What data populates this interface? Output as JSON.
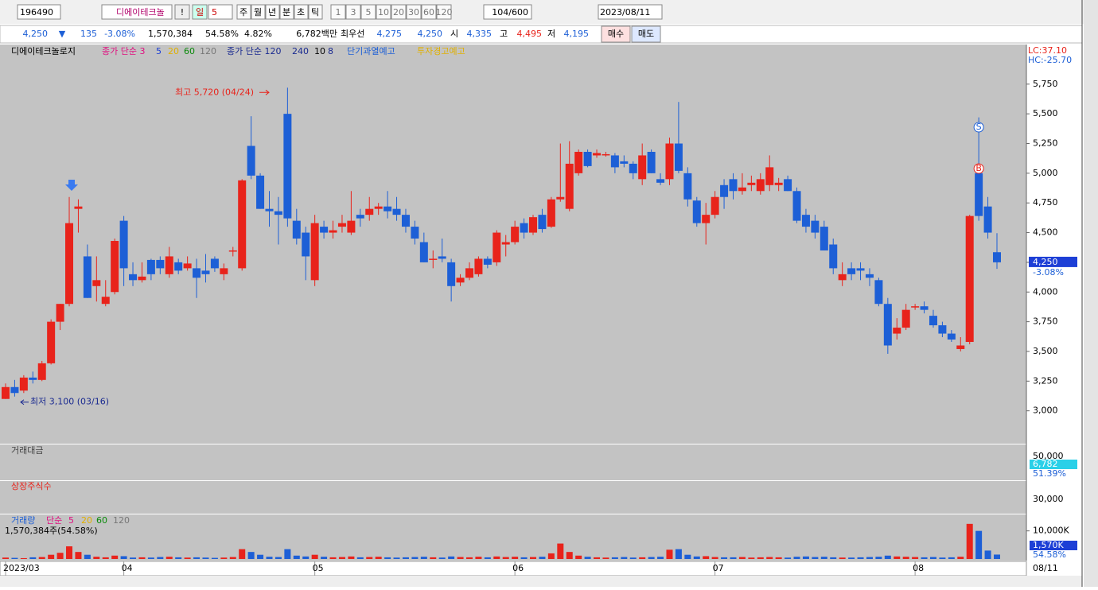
{
  "toolbar": {
    "code": "196490",
    "name": "디에이테크놀",
    "warn": "!",
    "period": "일",
    "period_n": "5",
    "units": [
      "주",
      "월",
      "년",
      "분",
      "초",
      "틱"
    ],
    "intervals": [
      "1",
      "3",
      "5",
      "10",
      "20",
      "30",
      "60",
      "120"
    ],
    "count": "104/600",
    "date": "2023/08/11"
  },
  "quote": {
    "price": "4,250",
    "arrow": "▼",
    "change": "135",
    "rate": "-3.08%",
    "volume": "1,570,384",
    "vol_rate": "54.58%",
    "turnover": "4.82%",
    "amount": "6,782백만",
    "best_label": "최우선",
    "ask": "4,275",
    "bid": "4,250",
    "open_label": "시",
    "open": "4,335",
    "high_label": "고",
    "high": "4,495",
    "low_label": "저",
    "low": "4,195",
    "buy": "매수",
    "sell": "매도"
  },
  "legend": {
    "name": "디에이테크놀로지",
    "ma1": "종가 단순 3",
    "ma1b": "5",
    "ma1c": "20",
    "ma1d": "60",
    "ma1e": "120",
    "ma2": "종가 단순 120",
    "ma2b": "240",
    "ma2c": "10",
    "ma2d": "8",
    "alert1": "단기과열예고",
    "alert2": "투자경고예고",
    "lc": "LC:37.10",
    "hc": "HC:-25.70"
  },
  "annotations": {
    "high": "최고 5,720 (04/24)",
    "low": "최저 3,100 (03/16)",
    "sell_mark": "S",
    "buy_mark": "B",
    "last_price": "4,250",
    "last_rate": "-3.08%",
    "end_date": "08/11"
  },
  "chart_data": {
    "type": "candlestick",
    "up_color": "#e8231b",
    "down_color": "#1d5fd6",
    "categories": [
      "2023/03",
      null,
      null,
      null,
      null,
      null,
      null,
      null,
      null,
      null,
      null,
      null,
      null,
      "04",
      null,
      null,
      null,
      null,
      null,
      null,
      null,
      null,
      null,
      null,
      null,
      null,
      null,
      null,
      null,
      null,
      null,
      null,
      null,
      null,
      "05",
      null,
      null,
      null,
      null,
      null,
      null,
      null,
      null,
      null,
      null,
      null,
      null,
      null,
      null,
      null,
      null,
      null,
      null,
      null,
      null,
      null,
      "06",
      null,
      null,
      null,
      null,
      null,
      null,
      null,
      null,
      null,
      null,
      null,
      null,
      null,
      null,
      null,
      null,
      null,
      null,
      null,
      null,
      null,
      "07",
      null,
      null,
      null,
      null,
      null,
      null,
      null,
      null,
      null,
      null,
      null,
      null,
      null,
      null,
      null,
      null,
      null,
      null,
      null,
      null,
      null,
      "08",
      null,
      null,
      null,
      null,
      null,
      null,
      null,
      null,
      null
    ],
    "ohlc": [
      [
        3100,
        3230,
        3100,
        3200
      ],
      [
        3200,
        3260,
        3120,
        3150
      ],
      [
        3170,
        3300,
        3150,
        3280
      ],
      [
        3280,
        3330,
        3230,
        3260
      ],
      [
        3260,
        3420,
        3250,
        3400
      ],
      [
        3400,
        3770,
        3390,
        3750
      ],
      [
        3750,
        3900,
        3680,
        3900
      ],
      [
        3900,
        4800,
        3880,
        4580
      ],
      [
        4700,
        4780,
        4500,
        4720
      ],
      [
        4300,
        4400,
        3950,
        3950
      ],
      [
        4050,
        4300,
        3920,
        4100
      ],
      [
        3900,
        4100,
        3880,
        3960
      ],
      [
        4000,
        4450,
        3980,
        4430
      ],
      [
        4600,
        4640,
        4050,
        4200
      ],
      [
        4150,
        4250,
        4050,
        4100
      ],
      [
        4100,
        4250,
        4080,
        4130
      ],
      [
        4270,
        4280,
        4100,
        4150
      ],
      [
        4270,
        4300,
        4150,
        4200
      ],
      [
        4150,
        4380,
        4120,
        4300
      ],
      [
        4250,
        4280,
        4150,
        4180
      ],
      [
        4200,
        4300,
        4180,
        4240
      ],
      [
        4200,
        4280,
        3950,
        4120
      ],
      [
        4180,
        4320,
        4080,
        4150
      ],
      [
        4280,
        4300,
        4170,
        4200
      ],
      [
        4150,
        4240,
        4100,
        4200
      ],
      [
        4350,
        4380,
        4300,
        4350
      ],
      [
        4200,
        4950,
        4180,
        4940
      ],
      [
        5230,
        5480,
        4950,
        4980
      ],
      [
        4980,
        5000,
        4700,
        4700
      ],
      [
        4700,
        4850,
        4550,
        4680
      ],
      [
        4680,
        4800,
        4400,
        4650
      ],
      [
        5500,
        5720,
        4550,
        4620
      ],
      [
        4600,
        4700,
        4400,
        4450
      ],
      [
        4500,
        4550,
        4100,
        4300
      ],
      [
        4100,
        4650,
        4050,
        4580
      ],
      [
        4550,
        4600,
        4450,
        4500
      ],
      [
        4500,
        4600,
        4450,
        4520
      ],
      [
        4550,
        4650,
        4500,
        4580
      ],
      [
        4500,
        4850,
        4480,
        4600
      ],
      [
        4650,
        4700,
        4550,
        4620
      ],
      [
        4650,
        4800,
        4600,
        4700
      ],
      [
        4700,
        4750,
        4650,
        4720
      ],
      [
        4720,
        4850,
        4620,
        4680
      ],
      [
        4700,
        4800,
        4600,
        4650
      ],
      [
        4650,
        4700,
        4500,
        4550
      ],
      [
        4550,
        4600,
        4400,
        4450
      ],
      [
        4420,
        4500,
        4250,
        4250
      ],
      [
        4280,
        4350,
        4200,
        4280
      ],
      [
        4300,
        4450,
        4250,
        4280
      ],
      [
        4250,
        4280,
        3920,
        4050
      ],
      [
        4080,
        4150,
        4050,
        4120
      ],
      [
        4120,
        4250,
        4100,
        4200
      ],
      [
        4150,
        4300,
        4130,
        4280
      ],
      [
        4280,
        4300,
        4200,
        4230
      ],
      [
        4250,
        4520,
        4220,
        4500
      ],
      [
        4400,
        4480,
        4300,
        4420
      ],
      [
        4420,
        4600,
        4400,
        4550
      ],
      [
        4580,
        4620,
        4450,
        4500
      ],
      [
        4500,
        4650,
        4480,
        4630
      ],
      [
        4650,
        4700,
        4500,
        4530
      ],
      [
        4550,
        4800,
        4540,
        4780
      ],
      [
        4780,
        5250,
        4760,
        4800
      ],
      [
        4700,
        5270,
        4680,
        5080
      ],
      [
        5000,
        5200,
        4980,
        5180
      ],
      [
        5180,
        5200,
        5050,
        5060
      ],
      [
        5150,
        5200,
        5130,
        5170
      ],
      [
        5150,
        5180,
        5140,
        5160
      ],
      [
        5150,
        5170,
        5000,
        5050
      ],
      [
        5100,
        5150,
        5050,
        5080
      ],
      [
        5080,
        5100,
        4950,
        5000
      ],
      [
        4950,
        5250,
        4900,
        5150
      ],
      [
        5180,
        5200,
        5000,
        5000
      ],
      [
        4950,
        5000,
        4900,
        4920
      ],
      [
        4950,
        5300,
        4900,
        5250
      ],
      [
        5250,
        5600,
        5000,
        5020
      ],
      [
        5000,
        5050,
        4720,
        4780
      ],
      [
        4770,
        4800,
        4550,
        4580
      ],
      [
        4580,
        4750,
        4400,
        4650
      ],
      [
        4650,
        4850,
        4620,
        4800
      ],
      [
        4900,
        4950,
        4700,
        4800
      ],
      [
        4950,
        5000,
        4780,
        4850
      ],
      [
        4850,
        5000,
        4820,
        4880
      ],
      [
        4900,
        4980,
        4850,
        4920
      ],
      [
        4850,
        5000,
        4820,
        4950
      ],
      [
        4900,
        5150,
        4850,
        5050
      ],
      [
        4900,
        4960,
        4850,
        4920
      ],
      [
        4950,
        4980,
        4850,
        4850
      ],
      [
        4850,
        4880,
        4580,
        4600
      ],
      [
        4650,
        4700,
        4500,
        4550
      ],
      [
        4600,
        4650,
        4450,
        4500
      ],
      [
        4550,
        4600,
        4350,
        4350
      ],
      [
        4400,
        4450,
        4150,
        4200
      ],
      [
        4100,
        4250,
        4050,
        4150
      ],
      [
        4200,
        4250,
        4100,
        4150
      ],
      [
        4200,
        4250,
        4100,
        4180
      ],
      [
        4150,
        4200,
        4050,
        4120
      ],
      [
        4100,
        4120,
        3880,
        3900
      ],
      [
        3900,
        3950,
        3480,
        3550
      ],
      [
        3650,
        3780,
        3600,
        3700
      ],
      [
        3700,
        3900,
        3680,
        3850
      ],
      [
        3870,
        3900,
        3850,
        3880
      ],
      [
        3880,
        3920,
        3820,
        3850
      ],
      [
        3800,
        3850,
        3700,
        3720
      ],
      [
        3720,
        3750,
        3620,
        3650
      ],
      [
        3650,
        3680,
        3580,
        3600
      ],
      [
        3520,
        3620,
        3500,
        3550
      ],
      [
        3580,
        4650,
        3560,
        4640
      ],
      [
        5000,
        5470,
        4600,
        4640
      ],
      [
        4720,
        4800,
        4450,
        4500
      ],
      [
        4335,
        4495,
        4195,
        4250
      ]
    ],
    "ylim": [
      2730,
      6070
    ],
    "yticks": [
      {
        "value": 3000,
        "label": "3,000"
      },
      {
        "value": 3250,
        "label": "3,250"
      },
      {
        "value": 3500,
        "label": "3,500"
      },
      {
        "value": 3750,
        "label": "3,750"
      },
      {
        "value": 4000,
        "label": "4,000"
      },
      {
        "value": 4250,
        "label": "4,250"
      },
      {
        "value": 4500,
        "label": "4,500"
      },
      {
        "value": 4750,
        "label": "4,750"
      },
      {
        "value": 5000,
        "label": "5,000"
      },
      {
        "value": 5250,
        "label": "5,250"
      },
      {
        "value": 5500,
        "label": "5,500"
      },
      {
        "value": 5750,
        "label": "5,750"
      }
    ],
    "volume": [
      500,
      400,
      300,
      600,
      700,
      1500,
      2200,
      4500,
      2500,
      1500,
      800,
      600,
      1200,
      1000,
      500,
      600,
      500,
      700,
      800,
      600,
      500,
      600,
      500,
      400,
      500,
      700,
      3500,
      2500,
      1500,
      800,
      700,
      3500,
      1200,
      900,
      1500,
      800,
      600,
      700,
      900,
      600,
      700,
      800,
      600,
      500,
      600,
      700,
      800,
      600,
      500,
      900,
      700,
      600,
      800,
      600,
      900,
      700,
      800,
      600,
      700,
      800,
      2000,
      5500,
      2500,
      1200,
      800,
      600,
      500,
      600,
      700,
      500,
      600,
      700,
      800,
      3300,
      3500,
      1500,
      900,
      1000,
      700,
      600,
      600,
      700,
      500,
      600,
      700,
      600,
      500,
      800,
      900,
      700,
      800,
      600,
      500,
      500,
      600,
      700,
      800,
      1200,
      900,
      800,
      700,
      600,
      700,
      500,
      600,
      800,
      12500,
      10000,
      3000,
      1570
    ],
    "volume_ylim": [
      0,
      15000
    ],
    "volume_yticks": [
      {
        "value": 10000,
        "label": "10,000K"
      }
    ]
  },
  "panels": {
    "amount": {
      "title": "거래대금",
      "tick": "50,000",
      "last": "6,782",
      "rate": "51.39%"
    },
    "shares": {
      "title": "상장주식수",
      "tick": "30,000"
    },
    "vol": {
      "title": "거래량",
      "ma": "단순",
      "m5": "5",
      "m20": "20",
      "m60": "60",
      "m120": "120",
      "info": "1,570,384주(54.58%)",
      "last": "1,570K",
      "rate": "54.58%"
    }
  }
}
